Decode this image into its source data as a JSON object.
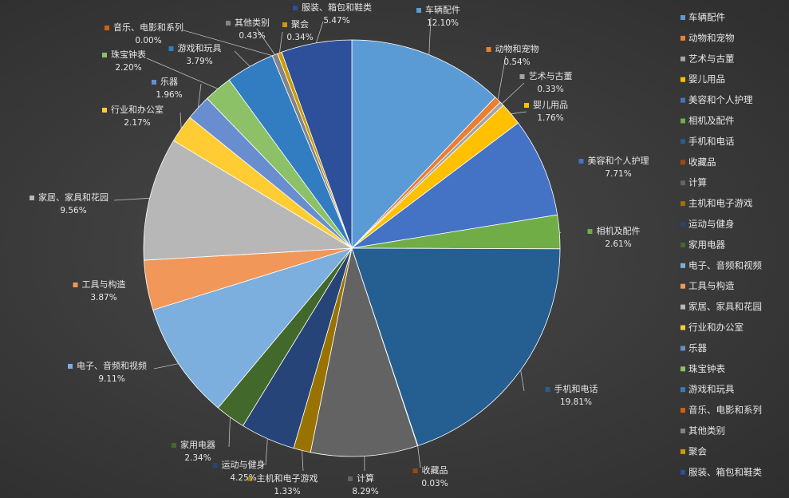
{
  "chart_data": {
    "type": "pie",
    "title": "",
    "legend_position": "right",
    "series": [
      {
        "name": "车辆配件",
        "value": 12.1,
        "label": "12.10%",
        "color": "#5b9bd5"
      },
      {
        "name": "动物和宠物",
        "value": 0.54,
        "label": "0.54%",
        "color": "#ed7d31"
      },
      {
        "name": "艺术与古董",
        "value": 0.33,
        "label": "0.33%",
        "color": "#a5a5a5"
      },
      {
        "name": "婴儿用品",
        "value": 1.76,
        "label": "1.76%",
        "color": "#ffc000"
      },
      {
        "name": "美容和个人护理",
        "value": 7.71,
        "label": "7.71%",
        "color": "#4472c4"
      },
      {
        "name": "相机及配件",
        "value": 2.61,
        "label": "2.61%",
        "color": "#70ad47"
      },
      {
        "name": "手机和电话",
        "value": 19.81,
        "label": "19.81%",
        "color": "#255e91"
      },
      {
        "name": "收藏品",
        "value": 0.03,
        "label": "0.03%",
        "color": "#9e480e"
      },
      {
        "name": "计算",
        "value": 8.29,
        "label": "8.29%",
        "color": "#636363"
      },
      {
        "name": "主机和电子游戏",
        "value": 1.33,
        "label": "1.33%",
        "color": "#997300"
      },
      {
        "name": "运动与健身",
        "value": 4.25,
        "label": "4.25%",
        "color": "#264478"
      },
      {
        "name": "家用电器",
        "value": 2.34,
        "label": "2.34%",
        "color": "#43682b"
      },
      {
        "name": "电子、音频和视频",
        "value": 9.11,
        "label": "9.11%",
        "color": "#7cafdd"
      },
      {
        "name": "工具与构造",
        "value": 3.87,
        "label": "3.87%",
        "color": "#f1975a"
      },
      {
        "name": "家居、家具和花园",
        "value": 9.56,
        "label": "9.56%",
        "color": "#b7b7b7"
      },
      {
        "name": "行业和办公室",
        "value": 2.17,
        "label": "2.17%",
        "color": "#ffcd33"
      },
      {
        "name": "乐器",
        "value": 1.96,
        "label": "1.96%",
        "color": "#698ed0"
      },
      {
        "name": "珠宝钟表",
        "value": 2.2,
        "label": "2.20%",
        "color": "#8cc168"
      },
      {
        "name": "游戏和玩具",
        "value": 3.79,
        "label": "3.79%",
        "color": "#327dc2"
      },
      {
        "name": "音乐、电影和系列",
        "value": 0.0,
        "label": "0.00%",
        "color": "#d26012"
      },
      {
        "name": "其他类别",
        "value": 0.43,
        "label": "0.43%",
        "color": "#848484"
      },
      {
        "name": "聚会",
        "value": 0.34,
        "label": "0.34%",
        "color": "#cc9a00"
      },
      {
        "name": "服装、箱包和鞋类",
        "value": 5.47,
        "label": "5.47%",
        "color": "#2e4f99"
      }
    ]
  }
}
